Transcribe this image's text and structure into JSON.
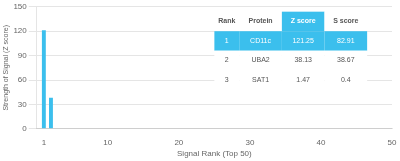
{
  "chart_data": {
    "type": "bar",
    "x": [
      1,
      2
    ],
    "values": [
      121.25,
      38.13
    ],
    "color": "#3bbfed",
    "xlabel": "Signal Rank (Top 50)",
    "ylabel": "Strength of Signal (Z score)",
    "xlim": [
      0,
      50
    ],
    "xticks": [
      1,
      10,
      20,
      30,
      40,
      50
    ],
    "ylim": [
      0,
      150
    ],
    "yticks": [
      0,
      30,
      60,
      90,
      120,
      150
    ],
    "grid": true,
    "table": [
      [
        "Rank",
        "Protein",
        "Z score",
        "S score"
      ],
      [
        "1",
        "CD11c",
        "121.25",
        "82.91"
      ],
      [
        "2",
        "UBA2",
        "38.13",
        "38.67"
      ],
      [
        "3",
        "SAT1",
        "1.47",
        "0.4"
      ]
    ]
  }
}
